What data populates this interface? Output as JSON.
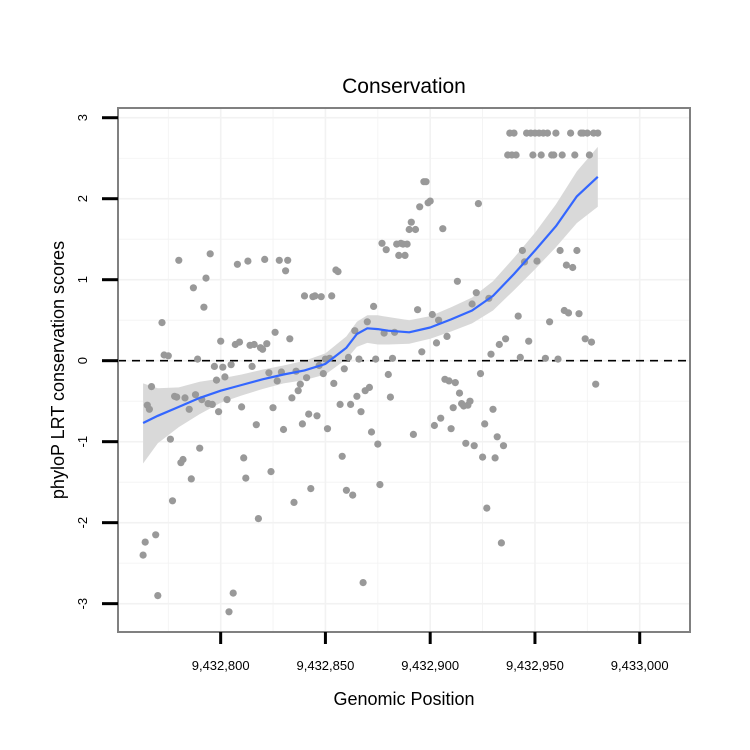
{
  "chart_data": {
    "type": "scatter",
    "title": "Conservation",
    "xlabel": "Genomic Position",
    "ylabel": "phyloP LRT conservation scores",
    "xlim": [
      9432751,
      9433024
    ],
    "ylim": [
      -3.35,
      3.12
    ],
    "x_ticks": [
      9432800,
      9432850,
      9432900,
      9432950,
      9433000
    ],
    "x_tick_labels": [
      "9,432,800",
      "9,432,850",
      "9,432,900",
      "9,432,950",
      "9,433,000"
    ],
    "y_ticks": [
      -3,
      -2,
      -1,
      0,
      1,
      2,
      3
    ],
    "y_tick_labels": [
      "-3",
      "-2",
      "-1",
      "0",
      "1",
      "2",
      "3"
    ],
    "reference_line": {
      "y": 0,
      "style": "dashed",
      "color": "#000000"
    },
    "point_color": "#999999",
    "smooth_color": "#3366ff",
    "ribbon_color": "#d9d9d9",
    "panel_border_color": "#808080",
    "grid_color": "#f2f2f2",
    "series": [
      {
        "name": "points",
        "points": [
          [
            9432763,
            -2.4
          ],
          [
            9432764,
            -2.24
          ],
          [
            9432765,
            -0.55
          ],
          [
            9432766,
            -0.6
          ],
          [
            9432767,
            -0.32
          ],
          [
            9432769,
            -2.15
          ],
          [
            9432770,
            -2.9
          ],
          [
            9432772,
            0.47
          ],
          [
            9432773,
            0.07
          ],
          [
            9432775,
            0.06
          ],
          [
            9432776,
            -0.97
          ],
          [
            9432777,
            -1.73
          ],
          [
            9432778,
            -0.44
          ],
          [
            9432779,
            -0.45
          ],
          [
            9432780,
            1.24
          ],
          [
            9432781,
            -1.26
          ],
          [
            9432782,
            -1.22
          ],
          [
            9432783,
            -0.46
          ],
          [
            9432785,
            -0.6
          ],
          [
            9432786,
            -1.46
          ],
          [
            9432787,
            0.9
          ],
          [
            9432788,
            -0.42
          ],
          [
            9432789,
            0.02
          ],
          [
            9432790,
            -1.08
          ],
          [
            9432791,
            -0.48
          ],
          [
            9432792,
            0.66
          ],
          [
            9432793,
            1.02
          ],
          [
            9432794,
            -0.53
          ],
          [
            9432795,
            1.32
          ],
          [
            9432796,
            -0.54
          ],
          [
            9432797,
            -0.07
          ],
          [
            9432798,
            -0.24
          ],
          [
            9432799,
            -0.63
          ],
          [
            9432800,
            0.24
          ],
          [
            9432801,
            -0.08
          ],
          [
            9432802,
            -0.2
          ],
          [
            9432803,
            -0.48
          ],
          [
            9432804,
            -3.1
          ],
          [
            9432805,
            -0.05
          ],
          [
            9432806,
            -2.87
          ],
          [
            9432807,
            0.2
          ],
          [
            9432808,
            1.19
          ],
          [
            9432809,
            0.23
          ],
          [
            9432810,
            -0.57
          ],
          [
            9432811,
            -1.2
          ],
          [
            9432812,
            -1.45
          ],
          [
            9432813,
            1.23
          ],
          [
            9432814,
            0.19
          ],
          [
            9432815,
            -0.07
          ],
          [
            9432816,
            0.2
          ],
          [
            9432817,
            -0.79
          ],
          [
            9432818,
            -1.95
          ],
          [
            9432819,
            0.16
          ],
          [
            9432820,
            0.14
          ],
          [
            9432821,
            1.25
          ],
          [
            9432822,
            0.21
          ],
          [
            9432823,
            -0.15
          ],
          [
            9432824,
            -1.37
          ],
          [
            9432825,
            -0.58
          ],
          [
            9432826,
            0.35
          ],
          [
            9432827,
            -0.25
          ],
          [
            9432828,
            1.24
          ],
          [
            9432829,
            -0.14
          ],
          [
            9432830,
            -0.85
          ],
          [
            9432831,
            1.11
          ],
          [
            9432832,
            1.24
          ],
          [
            9432833,
            0.27
          ],
          [
            9432834,
            -0.46
          ],
          [
            9432835,
            -1.75
          ],
          [
            9432836,
            -0.13
          ],
          [
            9432837,
            -0.37
          ],
          [
            9432838,
            -0.29
          ],
          [
            9432839,
            -0.78
          ],
          [
            9432840,
            0.8
          ],
          [
            9432841,
            -0.21
          ],
          [
            9432842,
            -0.66
          ],
          [
            9432843,
            -1.58
          ],
          [
            9432844,
            0.79
          ],
          [
            9432845,
            0.8
          ],
          [
            9432846,
            -0.68
          ],
          [
            9432847,
            -0.06
          ],
          [
            9432848,
            0.79
          ],
          [
            9432849,
            -0.16
          ],
          [
            9432850,
            0.02
          ],
          [
            9432851,
            -0.84
          ],
          [
            9432852,
            0.03
          ],
          [
            9432853,
            0.8
          ],
          [
            9432854,
            -0.28
          ],
          [
            9432855,
            1.12
          ],
          [
            9432856,
            1.1
          ],
          [
            9432857,
            -0.54
          ],
          [
            9432858,
            -1.18
          ],
          [
            9432859,
            -0.1
          ],
          [
            9432860,
            -1.6
          ],
          [
            9432861,
            0.04
          ],
          [
            9432862,
            -0.54
          ],
          [
            9432863,
            -1.66
          ],
          [
            9432864,
            0.37
          ],
          [
            9432865,
            -0.44
          ],
          [
            9432866,
            0.02
          ],
          [
            9432867,
            -0.63
          ],
          [
            9432868,
            -2.74
          ],
          [
            9432869,
            -0.37
          ],
          [
            9432870,
            0.48
          ],
          [
            9432871,
            -0.33
          ],
          [
            9432872,
            -0.88
          ],
          [
            9432873,
            0.67
          ],
          [
            9432874,
            0.02
          ],
          [
            9432875,
            -1.03
          ],
          [
            9432876,
            -1.53
          ],
          [
            9432877,
            1.45
          ],
          [
            9432878,
            0.34
          ],
          [
            9432879,
            1.37
          ],
          [
            9432880,
            -0.17
          ],
          [
            9432881,
            -0.45
          ],
          [
            9432882,
            0.03
          ],
          [
            9432883,
            0.35
          ],
          [
            9432884,
            1.44
          ],
          [
            9432885,
            1.3
          ],
          [
            9432886,
            1.45
          ],
          [
            9432887,
            1.44
          ],
          [
            9432888,
            1.3
          ],
          [
            9432889,
            1.44
          ],
          [
            9432890,
            1.62
          ],
          [
            9432891,
            1.71
          ],
          [
            9432892,
            -0.91
          ],
          [
            9432893,
            1.62
          ],
          [
            9432894,
            0.63
          ],
          [
            9432895,
            1.9
          ],
          [
            9432896,
            0.11
          ],
          [
            9432897,
            2.21
          ],
          [
            9432898,
            2.21
          ],
          [
            9432899,
            1.95
          ],
          [
            9432900,
            1.97
          ],
          [
            9432901,
            0.57
          ],
          [
            9432902,
            -0.8
          ],
          [
            9432903,
            0.22
          ],
          [
            9432904,
            0.5
          ],
          [
            9432905,
            -0.71
          ],
          [
            9432906,
            1.63
          ],
          [
            9432907,
            -0.23
          ],
          [
            9432908,
            0.3
          ],
          [
            9432909,
            -0.25
          ],
          [
            9432910,
            -0.84
          ],
          [
            9432911,
            -0.58
          ],
          [
            9432912,
            -0.27
          ],
          [
            9432913,
            0.98
          ],
          [
            9432914,
            -0.4
          ],
          [
            9432915,
            -0.53
          ],
          [
            9432916,
            -0.56
          ],
          [
            9432917,
            -1.02
          ],
          [
            9432918,
            -0.55
          ],
          [
            9432919,
            -0.5
          ],
          [
            9432920,
            0.7
          ],
          [
            9432921,
            -1.05
          ],
          [
            9432922,
            0.84
          ],
          [
            9432923,
            1.94
          ],
          [
            9432924,
            -0.16
          ],
          [
            9432925,
            -1.19
          ],
          [
            9432926,
            -0.78
          ],
          [
            9432927,
            -1.82
          ],
          [
            9432928,
            0.77
          ],
          [
            9432929,
            0.08
          ],
          [
            9432930,
            -0.6
          ],
          [
            9432931,
            -1.2
          ],
          [
            9432932,
            -0.94
          ],
          [
            9432933,
            0.2
          ],
          [
            9432934,
            -2.25
          ],
          [
            9432935,
            -1.05
          ],
          [
            9432936,
            0.27
          ],
          [
            9432937,
            2.54
          ],
          [
            9432938,
            2.81
          ],
          [
            9432939,
            2.54
          ],
          [
            9432940,
            2.81
          ],
          [
            9432941,
            2.54
          ],
          [
            9432942,
            0.55
          ],
          [
            9432943,
            0.04
          ],
          [
            9432944,
            1.36
          ],
          [
            9432945,
            1.22
          ],
          [
            9432946,
            2.81
          ],
          [
            9432947,
            0.24
          ],
          [
            9432948,
            2.81
          ],
          [
            9432949,
            2.54
          ],
          [
            9432950,
            2.81
          ],
          [
            9432951,
            1.23
          ],
          [
            9432952,
            2.81
          ],
          [
            9432953,
            2.54
          ],
          [
            9432954,
            2.81
          ],
          [
            9432955,
            0.03
          ],
          [
            9432956,
            2.81
          ],
          [
            9432957,
            0.48
          ],
          [
            9432958,
            2.54
          ],
          [
            9432959,
            2.54
          ],
          [
            9432960,
            2.81
          ],
          [
            9432961,
            0.02
          ],
          [
            9432962,
            1.36
          ],
          [
            9432963,
            2.54
          ],
          [
            9432964,
            0.62
          ],
          [
            9432965,
            1.18
          ],
          [
            9432966,
            0.59
          ],
          [
            9432967,
            2.81
          ],
          [
            9432968,
            1.15
          ],
          [
            9432969,
            2.54
          ],
          [
            9432970,
            1.36
          ],
          [
            9432971,
            0.58
          ],
          [
            9432972,
            2.81
          ],
          [
            9432973,
            2.81
          ],
          [
            9432974,
            0.27
          ],
          [
            9432975,
            2.81
          ],
          [
            9432976,
            2.54
          ],
          [
            9432977,
            0.23
          ],
          [
            9432978,
            2.81
          ],
          [
            9432979,
            -0.29
          ],
          [
            9432980,
            2.81
          ]
        ]
      }
    ],
    "smooth_fit": {
      "x": [
        9432763,
        9432770,
        9432780,
        9432790,
        9432800,
        9432810,
        9432820,
        9432830,
        9432840,
        9432850,
        9432860,
        9432865,
        9432870,
        9432875,
        9432880,
        9432890,
        9432900,
        9432910,
        9432920,
        9432930,
        9432940,
        9432950,
        9432960,
        9432970,
        9432980
      ],
      "y": [
        -0.77,
        -0.68,
        -0.57,
        -0.46,
        -0.37,
        -0.3,
        -0.23,
        -0.17,
        -0.12,
        -0.04,
        0.16,
        0.33,
        0.4,
        0.39,
        0.37,
        0.35,
        0.41,
        0.51,
        0.62,
        0.8,
        1.07,
        1.36,
        1.66,
        2.03,
        2.27
      ],
      "lower": [
        -1.27,
        -1.02,
        -0.82,
        -0.66,
        -0.52,
        -0.43,
        -0.35,
        -0.28,
        -0.24,
        -0.17,
        0.02,
        0.17,
        0.22,
        0.2,
        0.2,
        0.21,
        0.27,
        0.36,
        0.46,
        0.62,
        0.87,
        1.13,
        1.4,
        1.7,
        1.9
      ],
      "upper": [
        -0.28,
        -0.34,
        -0.33,
        -0.26,
        -0.22,
        -0.17,
        -0.11,
        -0.06,
        0.0,
        0.09,
        0.3,
        0.48,
        0.56,
        0.56,
        0.54,
        0.5,
        0.55,
        0.66,
        0.78,
        0.98,
        1.27,
        1.58,
        1.93,
        2.34,
        2.64
      ]
    }
  }
}
